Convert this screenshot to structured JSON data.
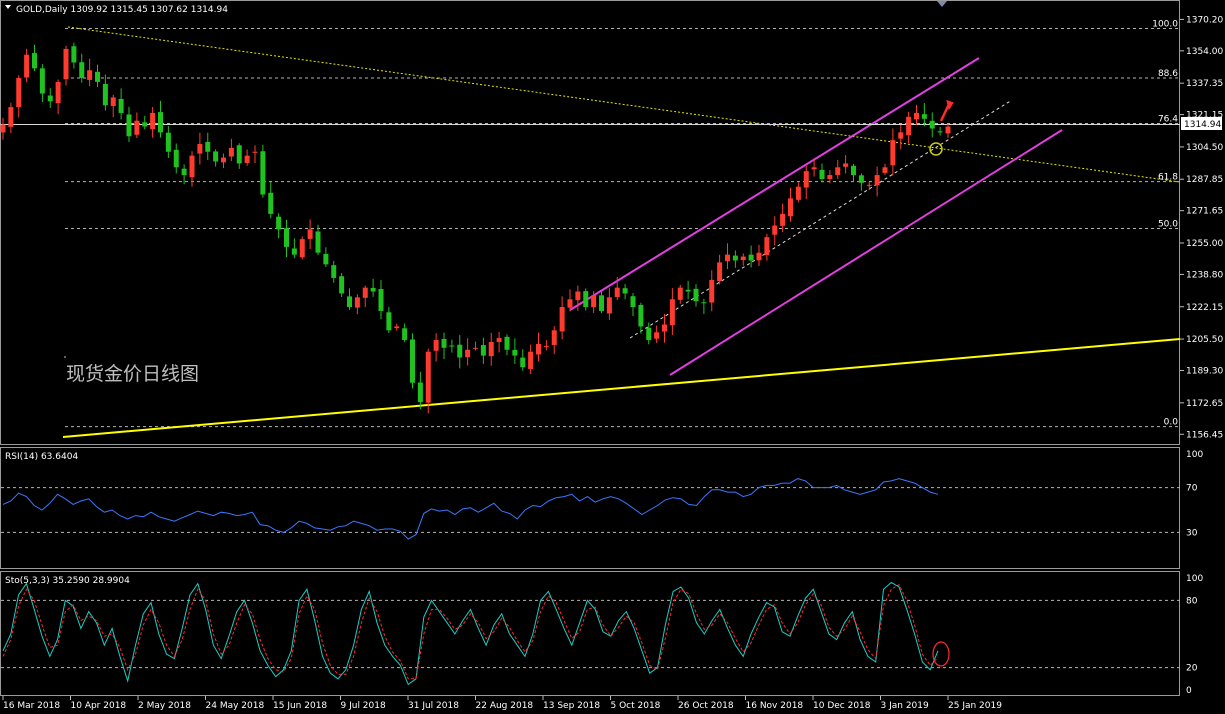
{
  "colors": {
    "background": "#000000",
    "bull_candle": "#ff3b2f",
    "bear_candle": "#1fc21f",
    "channel": "#e040e0",
    "support": "#ffff00",
    "fib_line": "#b4b4b4",
    "rsi": "#3b78ff",
    "stoch_main": "#19d0c8",
    "stoch_signal": "#ff2a2a",
    "arrow": "#ff2a2a",
    "circle_mark": "#c9c920",
    "stoch_circle": "#ff2a2a"
  },
  "main_header": "GOLD,Daily  1309.92 1315.45 1307.62 1314.94",
  "current_price_label": "1314.94",
  "watermark": "现货金价日线图",
  "rsi_header": "RSI(14) 63.6404",
  "sto_header": "Sto(5,3,3) 35.2590 28.9904",
  "icons": {
    "menu": "triangle-down-icon",
    "marker": "triangle-down-icon"
  },
  "chart_data": [
    {
      "type": "candlestick",
      "title": "GOLD,Daily",
      "ohlc_last": {
        "open": 1309.92,
        "high": 1315.45,
        "low": 1307.62,
        "close": 1314.94
      },
      "x_tick_labels": [
        "16 Mar 2018",
        "10 Apr 2018",
        "2 May 2018",
        "24 May 2018",
        "15 Jun 2018",
        "9 Jul 2018",
        "31 Jul 2018",
        "22 Aug 2018",
        "13 Sep 2018",
        "5 Oct 2018",
        "26 Oct 2018",
        "16 Nov 2018",
        "10 Dec 2018",
        "3 Jan 2019",
        "25 Jan 2019"
      ],
      "y_ticks": [
        1370.2,
        1354.0,
        1337.35,
        1321.15,
        1304.5,
        1287.85,
        1271.65,
        1255.0,
        1238.8,
        1222.15,
        1205.5,
        1189.3,
        1172.65,
        1156.45
      ],
      "ylim": [
        1153.5,
        1373.5
      ],
      "fib_levels": [
        {
          "label": "100.0",
          "price": 1365.5
        },
        {
          "label": "88.6",
          "price": 1340.0
        },
        {
          "label": "76.4",
          "price": 1316.6
        },
        {
          "label": "61.8",
          "price": 1286.6
        },
        {
          "label": "50.0",
          "price": 1262.5
        },
        {
          "label": "0.0",
          "price": 1160.4
        }
      ],
      "close_path": [
        1316,
        1325,
        1340,
        1352,
        1345,
        1332,
        1328,
        1338,
        1355,
        1348,
        1340,
        1344,
        1338,
        1326,
        1330,
        1322,
        1310,
        1318,
        1315,
        1322,
        1312,
        1302,
        1294,
        1290,
        1300,
        1306,
        1302,
        1297,
        1299,
        1304,
        1296,
        1300,
        1302,
        1280,
        1270,
        1262,
        1253,
        1249,
        1257,
        1262,
        1250,
        1244,
        1237,
        1229,
        1222,
        1227,
        1232,
        1230,
        1220,
        1210,
        1212,
        1205,
        1183,
        1173,
        1199,
        1205,
        1201,
        1202,
        1196,
        1200,
        1201,
        1197,
        1204,
        1206,
        1200,
        1197,
        1191,
        1199,
        1203,
        1202,
        1210,
        1222,
        1226,
        1230,
        1222,
        1228,
        1220,
        1227,
        1232,
        1229,
        1222,
        1212,
        1205,
        1209,
        1213,
        1226,
        1232,
        1230,
        1225,
        1224,
        1236,
        1245,
        1249,
        1246,
        1248,
        1246,
        1250,
        1258,
        1264,
        1270,
        1278,
        1284,
        1292,
        1294,
        1288,
        1290,
        1294,
        1296,
        1290,
        1286,
        1285,
        1290,
        1294,
        1308,
        1312,
        1320,
        1322,
        1319,
        1314,
        1312,
        1315
      ]
    },
    {
      "type": "line",
      "title": "RSI(14) 63.6404",
      "ylim": [
        0,
        100
      ],
      "levels": [
        70,
        30
      ],
      "y_tick_labels": [
        "100",
        "70",
        "30"
      ],
      "values": [
        55,
        58,
        65,
        62,
        54,
        50,
        56,
        64,
        60,
        55,
        58,
        60,
        53,
        48,
        50,
        45,
        42,
        45,
        44,
        48,
        44,
        42,
        40,
        43,
        46,
        49,
        47,
        45,
        48,
        47,
        45,
        46,
        48,
        37,
        36,
        32,
        30,
        34,
        40,
        38,
        34,
        33,
        32,
        35,
        36,
        40,
        38,
        36,
        32,
        33,
        33,
        31,
        24,
        28,
        47,
        51,
        49,
        50,
        46,
        51,
        52,
        48,
        52,
        56,
        49,
        47,
        42,
        50,
        54,
        53,
        58,
        61,
        62,
        64,
        58,
        62,
        57,
        60,
        62,
        60,
        56,
        51,
        46,
        50,
        54,
        59,
        61,
        60,
        55,
        54,
        62,
        68,
        68,
        66,
        66,
        62,
        64,
        70,
        72,
        72,
        74,
        74,
        78,
        76,
        70,
        70,
        70,
        72,
        68,
        66,
        64,
        66,
        68,
        75,
        76,
        78,
        76,
        74,
        70,
        66,
        64
      ]
    },
    {
      "type": "line",
      "title": "Sto(5,3,3) 35.2590 28.9904",
      "ylim": [
        0,
        100
      ],
      "levels": [
        80,
        20
      ],
      "y_tick_labels": [
        "100",
        "80",
        "20",
        "0"
      ],
      "series": [
        {
          "name": "main",
          "values": [
            35,
            50,
            85,
            95,
            72,
            48,
            30,
            45,
            80,
            75,
            55,
            70,
            60,
            40,
            55,
            30,
            8,
            40,
            68,
            78,
            50,
            32,
            28,
            55,
            85,
            95,
            72,
            40,
            28,
            48,
            70,
            80,
            60,
            35,
            22,
            12,
            18,
            35,
            80,
            90,
            62,
            30,
            15,
            10,
            18,
            40,
            72,
            88,
            60,
            40,
            30,
            22,
            5,
            10,
            65,
            80,
            70,
            60,
            50,
            62,
            72,
            55,
            40,
            58,
            68,
            50,
            40,
            30,
            50,
            80,
            88,
            72,
            55,
            40,
            60,
            80,
            72,
            52,
            48,
            62,
            70,
            55,
            35,
            15,
            20,
            58,
            88,
            92,
            82,
            60,
            50,
            62,
            72,
            55,
            40,
            30,
            50,
            65,
            78,
            74,
            52,
            48,
            66,
            82,
            90,
            70,
            50,
            45,
            60,
            70,
            45,
            30,
            25,
            90,
            96,
            92,
            72,
            50,
            25,
            18,
            35
          ]
        },
        {
          "name": "signal",
          "values": [
            30,
            45,
            75,
            90,
            80,
            58,
            38,
            40,
            70,
            76,
            62,
            66,
            62,
            48,
            50,
            38,
            18,
            32,
            58,
            72,
            60,
            40,
            30,
            45,
            72,
            90,
            80,
            50,
            32,
            40,
            60,
            76,
            68,
            45,
            28,
            18,
            16,
            28,
            68,
            84,
            72,
            42,
            22,
            14,
            14,
            30,
            60,
            82,
            70,
            48,
            34,
            26,
            10,
            10,
            50,
            72,
            72,
            64,
            54,
            58,
            68,
            60,
            46,
            52,
            64,
            56,
            44,
            34,
            44,
            70,
            84,
            78,
            62,
            46,
            52,
            72,
            74,
            58,
            48,
            56,
            66,
            60,
            42,
            22,
            18,
            46,
            78,
            90,
            86,
            68,
            54,
            58,
            68,
            60,
            46,
            34,
            42,
            58,
            72,
            76,
            60,
            50,
            60,
            76,
            86,
            76,
            56,
            48,
            54,
            66,
            52,
            36,
            28,
            75,
            90,
            94,
            80,
            58,
            32,
            22,
            29
          ]
        }
      ]
    }
  ]
}
